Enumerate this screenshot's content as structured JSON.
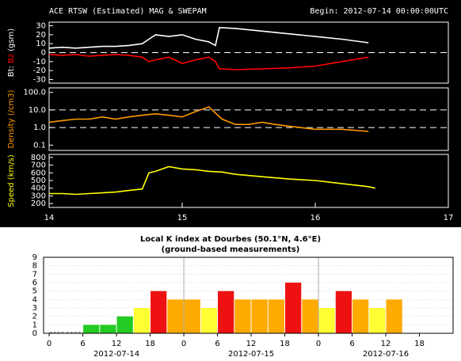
{
  "chart_data": [
    {
      "type": "line",
      "title": "ACE RTSW (Estimated) MAG & SWEPAM",
      "subtitle": "Begin: 2012-07-14 00:00:00UTC",
      "ylabel": "(gsm)",
      "xlim": [
        14,
        17
      ],
      "ylim": [
        -34,
        34
      ],
      "yticks": [
        -30,
        -20,
        -10,
        0,
        10,
        20,
        30
      ],
      "reference_lines": [
        0
      ],
      "background": "#000000",
      "series": [
        {
          "name": "Bt:",
          "color": "#ffffff",
          "x": [
            14,
            14.1,
            14.2,
            14.3,
            14.4,
            14.5,
            14.6,
            14.7,
            14.75,
            14.8,
            14.9,
            15,
            15.1,
            15.2,
            15.25,
            15.28,
            15.4,
            15.6,
            15.8,
            16,
            16.2,
            16.4
          ],
          "values": [
            5,
            6,
            5,
            6,
            7,
            7,
            8,
            10,
            15,
            20,
            18,
            20,
            15,
            12,
            8,
            28,
            27,
            24,
            21,
            18,
            15,
            11
          ]
        },
        {
          "name": "Bz",
          "color": "#ff0000",
          "x": [
            14,
            14.1,
            14.2,
            14.3,
            14.4,
            14.5,
            14.6,
            14.7,
            14.75,
            14.8,
            14.9,
            15,
            15.1,
            15.2,
            15.25,
            15.28,
            15.4,
            15.6,
            15.8,
            16,
            16.2,
            16.4
          ],
          "values": [
            -2,
            -3,
            -2,
            -4,
            -3,
            -2,
            -3,
            -5,
            -10,
            -8,
            -5,
            -12,
            -8,
            -5,
            -10,
            -18,
            -19,
            -18,
            -17,
            -15,
            -10,
            -5
          ]
        }
      ]
    },
    {
      "type": "line",
      "ylabel": "Density (/cm3)",
      "ylabel_color": "#ff9900",
      "log_scale": true,
      "xlim": [
        14,
        17
      ],
      "ylim": [
        0.05,
        180
      ],
      "yticks": [
        0.1,
        {
          "value": 1,
          "label": "1.0"
        },
        {
          "value": 10,
          "label": "10.0"
        },
        {
          "value": 100,
          "label": "100.0"
        }
      ],
      "reference_lines": [
        1,
        10
      ],
      "series": [
        {
          "color": "#ff9900",
          "x": [
            14,
            14.1,
            14.2,
            14.3,
            14.4,
            14.5,
            14.6,
            14.7,
            14.8,
            14.9,
            15,
            15.1,
            15.2,
            15.3,
            15.4,
            15.5,
            15.6,
            15.7,
            15.8,
            16,
            16.2,
            16.4
          ],
          "values": [
            2,
            2.5,
            3,
            3,
            4,
            3,
            4,
            5,
            6,
            5,
            4,
            8,
            15,
            3,
            1.5,
            1.5,
            2,
            1.5,
            1.2,
            0.8,
            0.8,
            0.6
          ]
        }
      ]
    },
    {
      "type": "line",
      "ylabel": "Speed (km/s)",
      "ylabel_color": "#ffff00",
      "xlim": [
        14,
        17
      ],
      "ylim": [
        150,
        840
      ],
      "yticks": [
        200,
        300,
        400,
        500,
        600,
        700,
        800
      ],
      "xticks": [
        14,
        15,
        16,
        17
      ],
      "series": [
        {
          "color": "#ffff00",
          "x": [
            14,
            14.1,
            14.2,
            14.3,
            14.4,
            14.5,
            14.6,
            14.7,
            14.75,
            14.8,
            14.9,
            15,
            15.1,
            15.2,
            15.3,
            15.4,
            15.6,
            15.8,
            16,
            16.2,
            16.4,
            16.45
          ],
          "values": [
            330,
            330,
            320,
            330,
            340,
            350,
            370,
            390,
            600,
            620,
            680,
            650,
            640,
            620,
            610,
            580,
            550,
            520,
            500,
            460,
            420,
            400
          ]
        }
      ]
    },
    {
      "type": "histogram",
      "title": "Local K index at Dourbes (50.1°N, 4.6°E)",
      "subtitle": "(ground-based measurements)",
      "bins": [
        0,
        3,
        6,
        9,
        12,
        15,
        18,
        21,
        24,
        27,
        30,
        33,
        36,
        39,
        42,
        45,
        48,
        51,
        54,
        57,
        60,
        63
      ],
      "values": [
        0,
        0,
        1,
        1,
        2,
        3,
        5,
        4,
        4,
        3,
        5,
        4,
        4,
        4,
        6,
        4,
        3,
        5,
        4,
        3,
        4
      ],
      "colors": [
        "#999999",
        "#999999",
        "#22cc22",
        "#22cc22",
        "#22cc22",
        "#ffff33",
        "#ee1111",
        "#ffaa00",
        "#ffaa00",
        "#ffff33",
        "#ee1111",
        "#ffaa00",
        "#ffaa00",
        "#ffaa00",
        "#ee1111",
        "#ffaa00",
        "#ffff33",
        "#ee1111",
        "#ffaa00",
        "#ffff33",
        "#ffaa00"
      ],
      "xlim": [
        -1,
        72
      ],
      "ylim": [
        0,
        9
      ],
      "yticks": [
        0,
        1,
        2,
        3,
        4,
        5,
        6,
        7,
        8,
        9
      ],
      "xticks": [
        0,
        6,
        12,
        18,
        {
          "value": 24,
          "label": "0"
        },
        {
          "value": 30,
          "label": "6"
        },
        {
          "value": 36,
          "label": "12"
        },
        {
          "value": 42,
          "label": "18"
        },
        {
          "value": 48,
          "label": "0"
        },
        {
          "value": 54,
          "label": "6"
        },
        {
          "value": 60,
          "label": "12"
        },
        {
          "value": 66,
          "label": "18"
        }
      ],
      "date_labels": [
        {
          "value": 12,
          "label": "2012-07-14"
        },
        {
          "value": 36,
          "label": "2012-07-15"
        },
        {
          "value": 60,
          "label": "2012-07-16"
        }
      ],
      "day_lines": [
        24,
        48
      ],
      "grid": true
    }
  ]
}
